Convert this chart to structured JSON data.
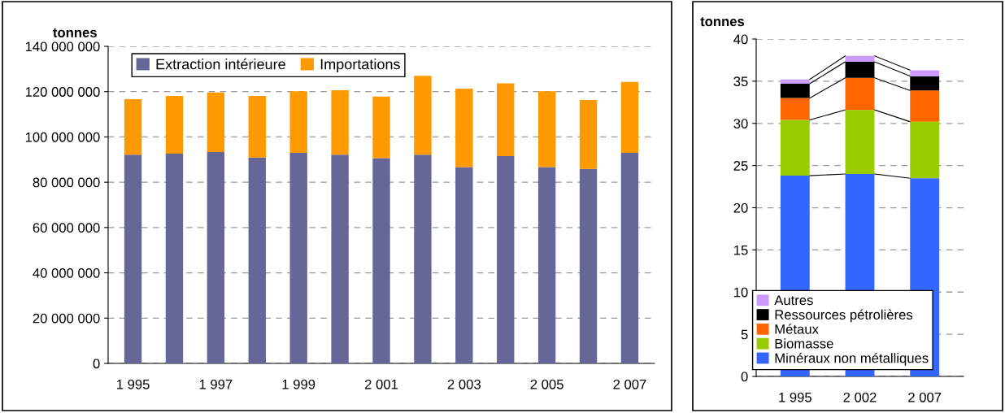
{
  "chart_data": [
    {
      "type": "bar",
      "stacked": true,
      "ylabel": "tonnes",
      "categories": [
        "1 995",
        null,
        "1 997",
        null,
        "1 999",
        null,
        "2 001",
        null,
        "2 003",
        null,
        "2 005",
        null,
        "2 007"
      ],
      "series": [
        {
          "name": "Extraction intérieure",
          "color": "#666699",
          "values": [
            92200000,
            92600000,
            93300000,
            90900000,
            93000000,
            92200000,
            90600000,
            92200000,
            86700000,
            91500000,
            86700000,
            85900000,
            93000000
          ]
        },
        {
          "name": "Importations",
          "color": "#ff9900",
          "values": [
            24500000,
            25500000,
            26300000,
            27200000,
            27200000,
            28400000,
            27200000,
            34800000,
            34600000,
            32200000,
            33500000,
            30400000,
            31300000
          ]
        }
      ],
      "ylim": [
        0,
        140000000
      ],
      "yticks": [
        0,
        {
          "value": 20000000,
          "label": "20 000 000"
        },
        {
          "value": 40000000,
          "label": "40 000 000"
        },
        {
          "value": 60000000,
          "label": "60 000 000"
        },
        {
          "value": 80000000,
          "label": "80 000 000"
        },
        {
          "value": 100000000,
          "label": "100 000 000"
        },
        {
          "value": 120000000,
          "label": "120 000 000"
        },
        {
          "value": 140000000,
          "label": "140 000 000"
        }
      ],
      "grid": "y",
      "legend": "top left"
    },
    {
      "type": "bar",
      "stacked": true,
      "ylabel": "tonnes",
      "categories": [
        "1 995",
        "2 002",
        "2 007"
      ],
      "series": [
        {
          "name": "Minéraux non métalliques",
          "color": "#3366ff",
          "values": [
            23.8,
            24.0,
            23.5
          ]
        },
        {
          "name": "Biomasse",
          "color": "#99cc00",
          "values": [
            6.6,
            7.6,
            6.7
          ]
        },
        {
          "name": "Métaux",
          "color": "#ff6600",
          "values": [
            2.6,
            3.8,
            3.7
          ]
        },
        {
          "name": "Ressources pétrolières",
          "color": "#000000",
          "values": [
            1.7,
            1.9,
            1.7
          ]
        },
        {
          "name": "Autres",
          "color": "#cc99ff",
          "values": [
            0.5,
            0.7,
            0.7
          ]
        }
      ],
      "ylim": [
        0,
        40
      ],
      "yticks": [
        0,
        5,
        10,
        15,
        20,
        25,
        30,
        35,
        40
      ],
      "grid": "y",
      "legend": "bottom left"
    }
  ]
}
